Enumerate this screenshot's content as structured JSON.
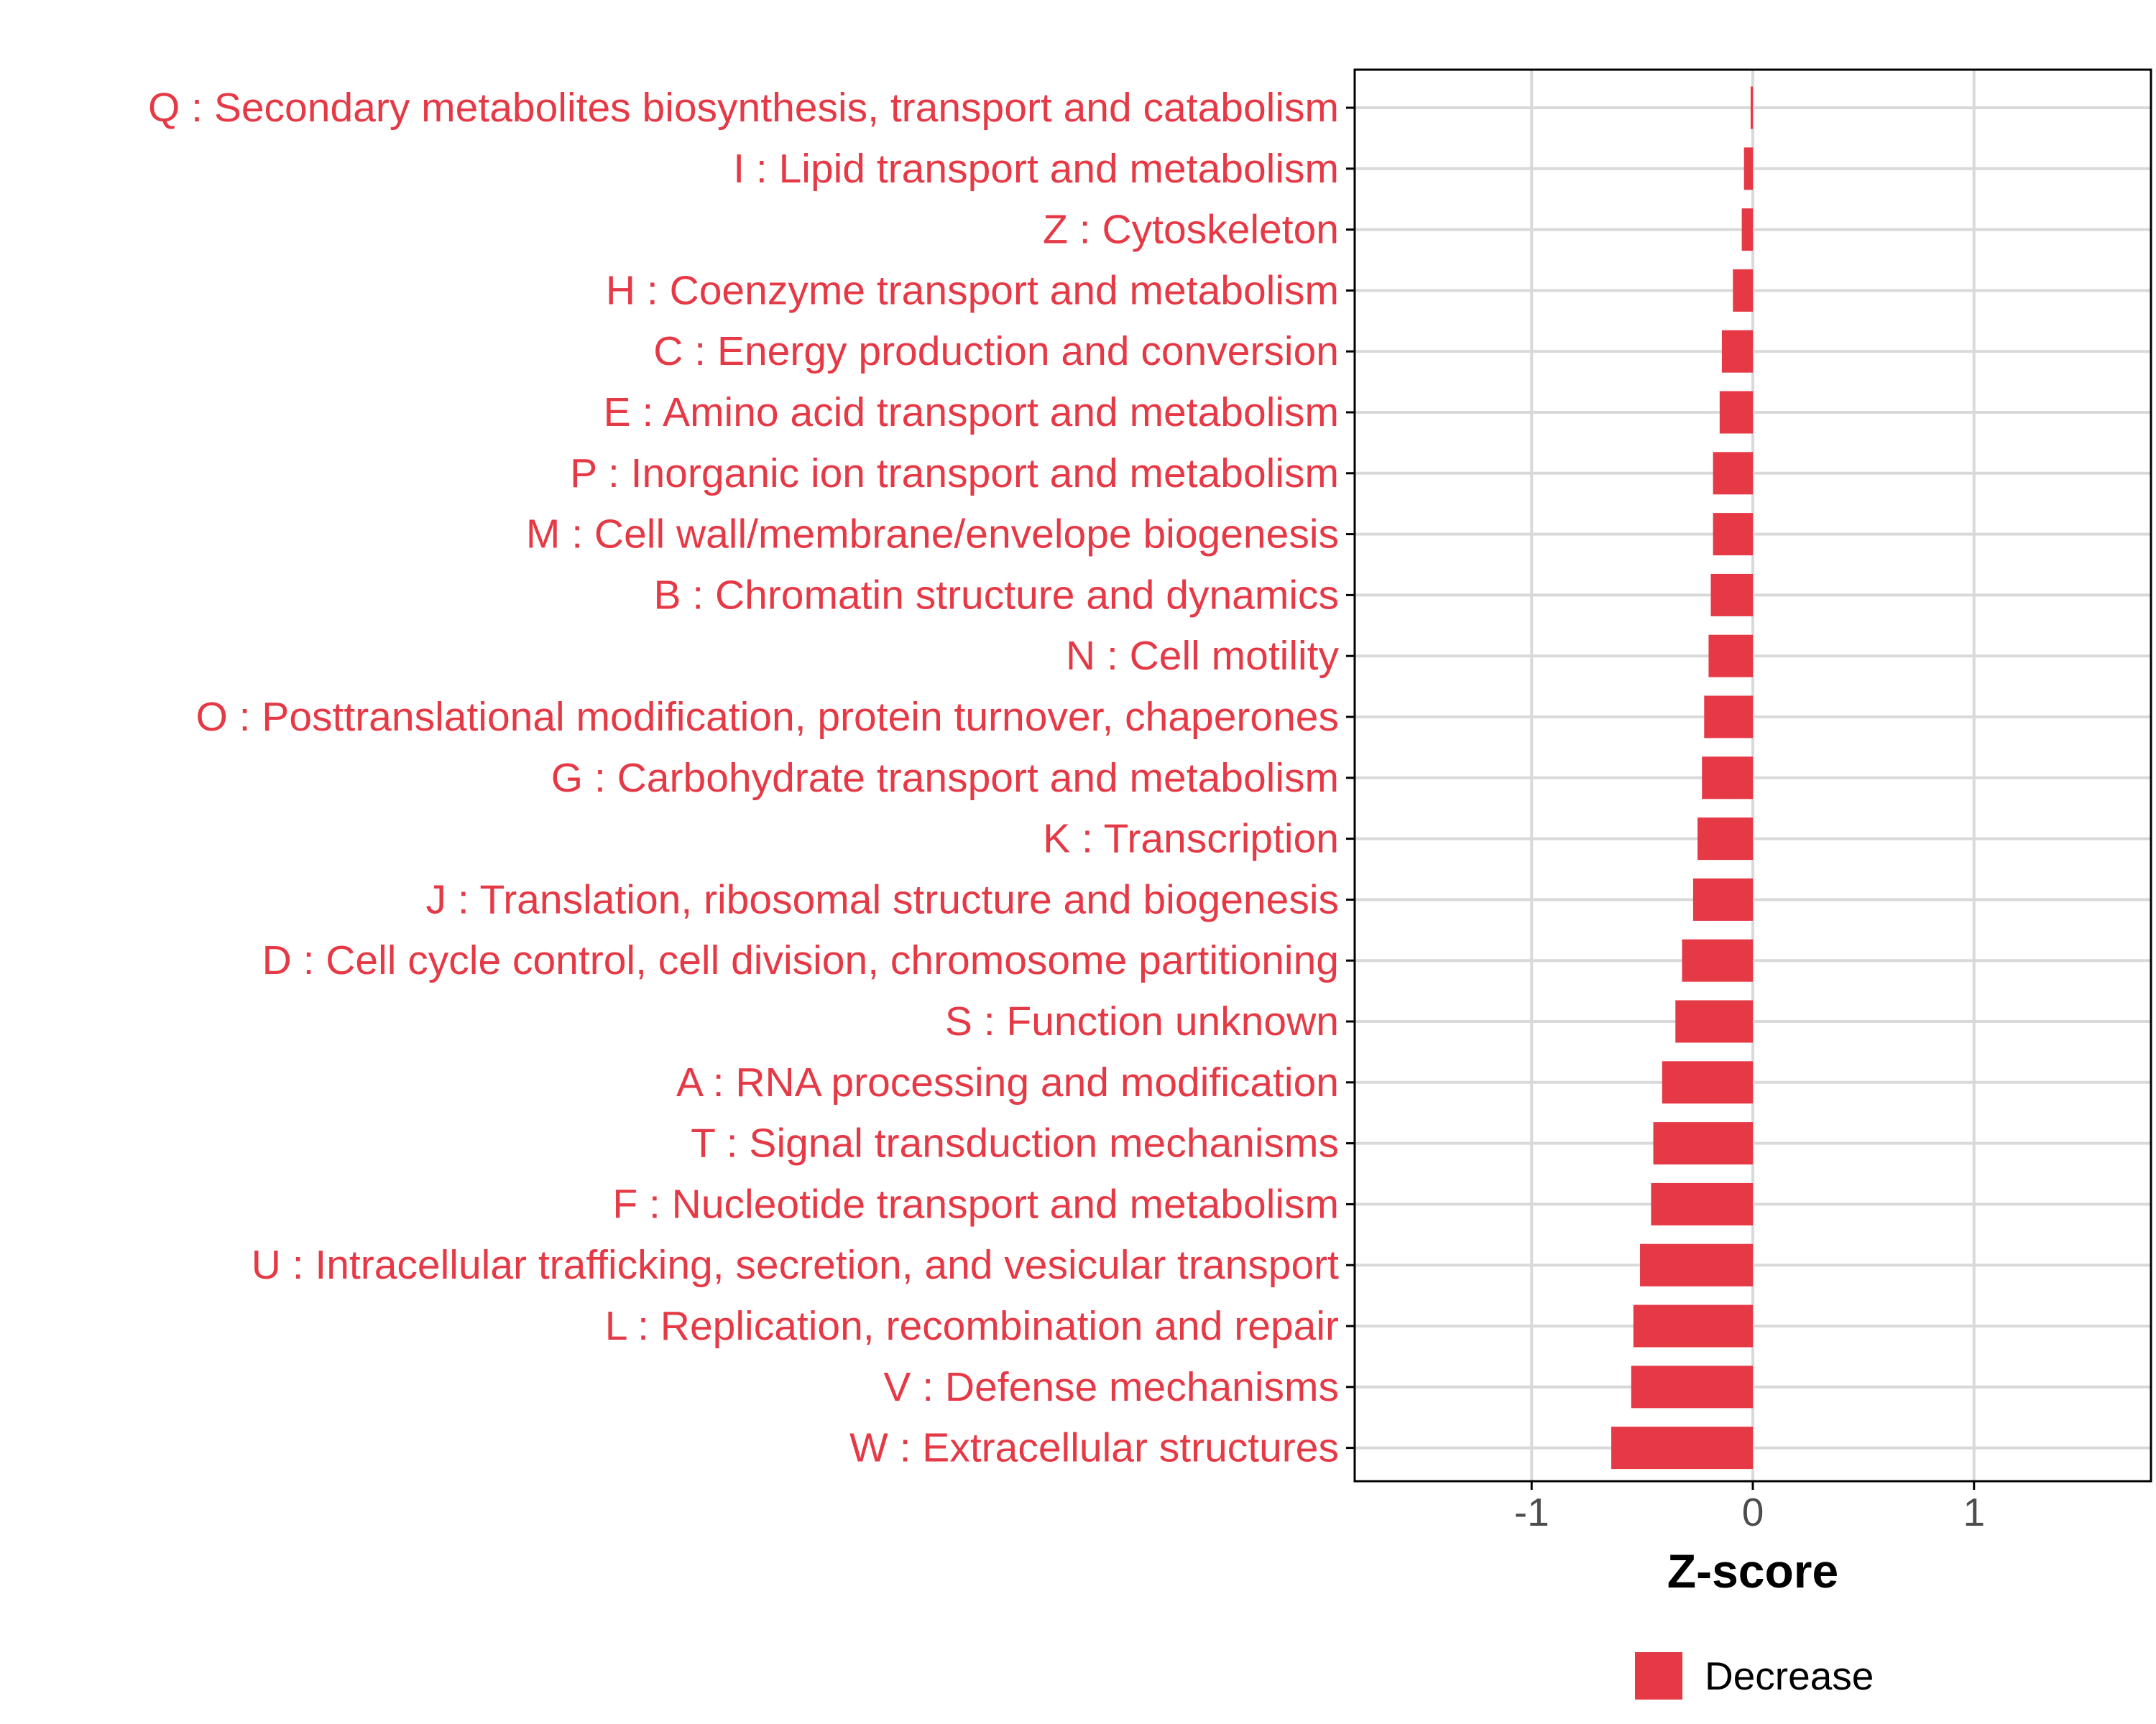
{
  "colors": {
    "bar": "#e63946",
    "label": "#e63946",
    "grid": "#d9d9d9",
    "axis": "#000000",
    "tick_text": "#4d4d4d"
  },
  "chart_data": {
    "type": "bar",
    "orientation": "horizontal",
    "xlabel": "Z-score",
    "xlim": [
      -1.8,
      1.8
    ],
    "xticks": [
      -1,
      0,
      1
    ],
    "xtick_labels": [
      "-1",
      "0",
      "1"
    ],
    "grid": true,
    "legend": {
      "position": "bottom",
      "entries": [
        {
          "label": "Decrease",
          "color": "#e63946"
        }
      ]
    },
    "categories": [
      "Q : Secondary metabolites biosynthesis, transport and catabolism",
      "I : Lipid transport and metabolism",
      "Z : Cytoskeleton",
      "H : Coenzyme transport and metabolism",
      "C : Energy production and conversion",
      "E : Amino acid transport and metabolism",
      "P : Inorganic ion transport and metabolism",
      "M : Cell wall/membrane/envelope biogenesis",
      "B : Chromatin structure and dynamics",
      "N : Cell motility",
      "O : Posttranslational modification, protein turnover, chaperones",
      "G : Carbohydrate transport and metabolism",
      "K : Transcription",
      "J : Translation, ribosomal structure and biogenesis",
      "D : Cell cycle control, cell division, chromosome partitioning",
      "S : Function unknown",
      "A : RNA processing and modification",
      "T : Signal transduction mechanisms",
      "F : Nucleotide transport and metabolism",
      "U : Intracellular trafficking, secretion, and vesicular transport",
      "L : Replication, recombination and repair",
      "V : Defense mechanisms",
      "W : Extracellular structures"
    ],
    "series": [
      {
        "name": "Decrease",
        "values": [
          -0.01,
          -0.04,
          -0.05,
          -0.09,
          -0.14,
          -0.15,
          -0.18,
          -0.18,
          -0.19,
          -0.2,
          -0.22,
          -0.23,
          -0.25,
          -0.27,
          -0.32,
          -0.35,
          -0.41,
          -0.45,
          -0.46,
          -0.51,
          -0.54,
          -0.55,
          -0.64
        ]
      }
    ]
  }
}
